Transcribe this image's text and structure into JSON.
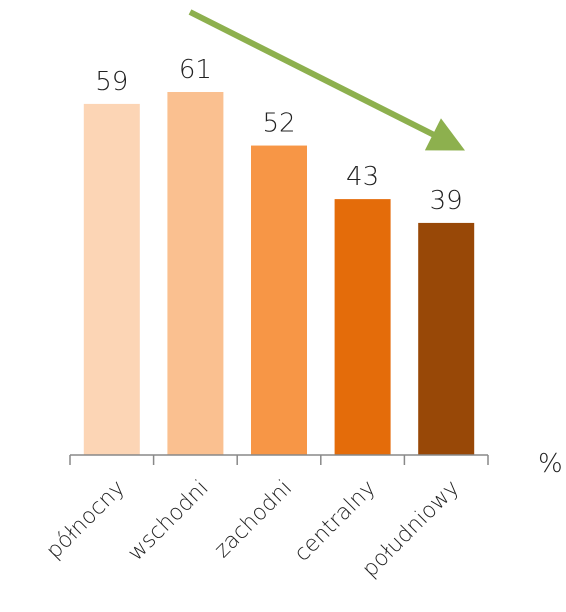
{
  "chart_data": {
    "type": "bar",
    "categories": [
      "północny",
      "wschodni",
      "zachodni",
      "centralny",
      "południowy"
    ],
    "values": [
      59,
      61,
      52,
      43,
      39
    ],
    "unit": "%",
    "ylim": [
      0,
      61
    ],
    "bar_colors": [
      "#FCD5B5",
      "#FAC090",
      "#F79646",
      "#E46C0A",
      "#984807"
    ],
    "trend_arrow_color": "#8DB04E",
    "grid": false,
    "legend": "none"
  }
}
